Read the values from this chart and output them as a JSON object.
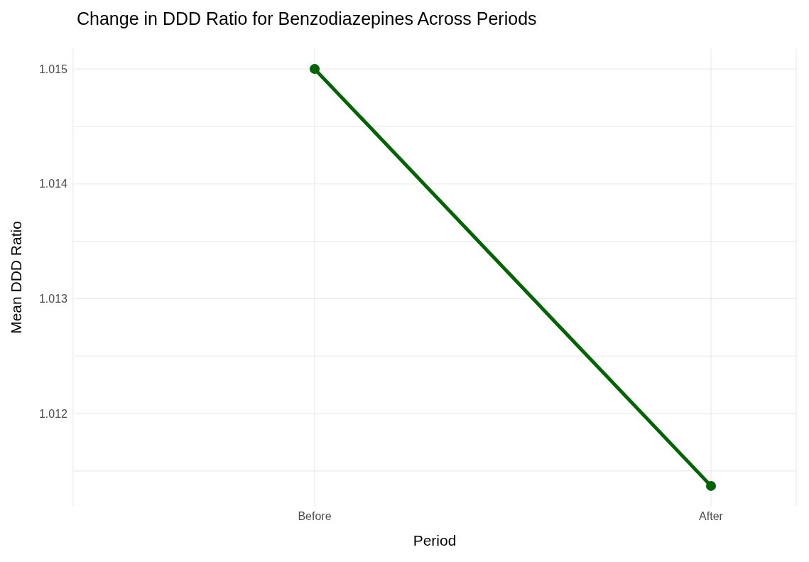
{
  "chart_data": {
    "type": "line",
    "title": "Change in DDD Ratio for Benzodiazepines Across Periods",
    "xlabel": "Period",
    "ylabel": "Mean DDD Ratio",
    "categories": [
      "Before",
      "After"
    ],
    "series": [
      {
        "color": "#006400",
        "values": [
          1.015,
          1.01137
        ]
      }
    ],
    "ylim": [
      1.01119,
      1.01518
    ],
    "yticks": [
      1.012,
      1.013,
      1.014,
      1.015
    ],
    "grid": true,
    "marker": "circle",
    "line_style": "solid",
    "legend": false
  }
}
